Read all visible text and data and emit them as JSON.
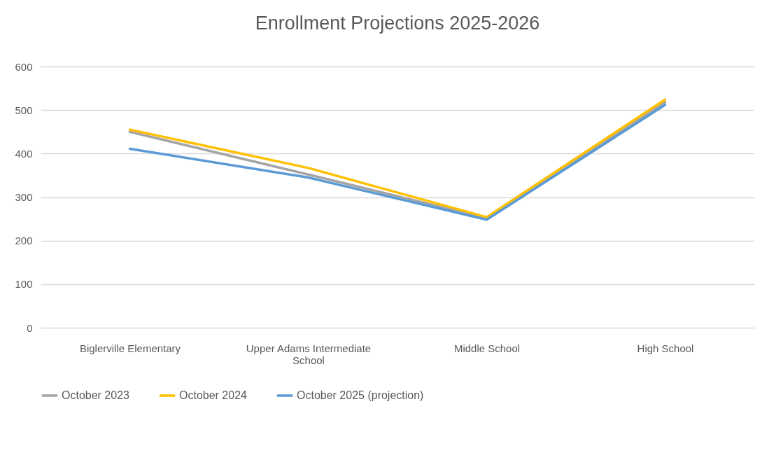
{
  "chart_data": {
    "type": "line",
    "title": "Enrollment Projections 2025-2026",
    "categories": [
      "Biglerville Elementary",
      "Upper Adams Intermediate School",
      "Middle School",
      "High School"
    ],
    "series": [
      {
        "name": "October 2023",
        "color": "#a5a5a5",
        "values": [
          450,
          352,
          252,
          518
        ]
      },
      {
        "name": "October 2024",
        "color": "#ffc000",
        "values": [
          455,
          367,
          254,
          524
        ]
      },
      {
        "name": "October 2025 (projection)",
        "color": "#5b9bd5",
        "values": [
          411,
          345,
          248,
          512
        ]
      }
    ],
    "ylim": [
      0,
      600
    ],
    "yticks": [
      0,
      100,
      200,
      300,
      400,
      500,
      600
    ],
    "grid": "y",
    "legend": "bottom",
    "marker": "none",
    "line_style": "solid"
  }
}
